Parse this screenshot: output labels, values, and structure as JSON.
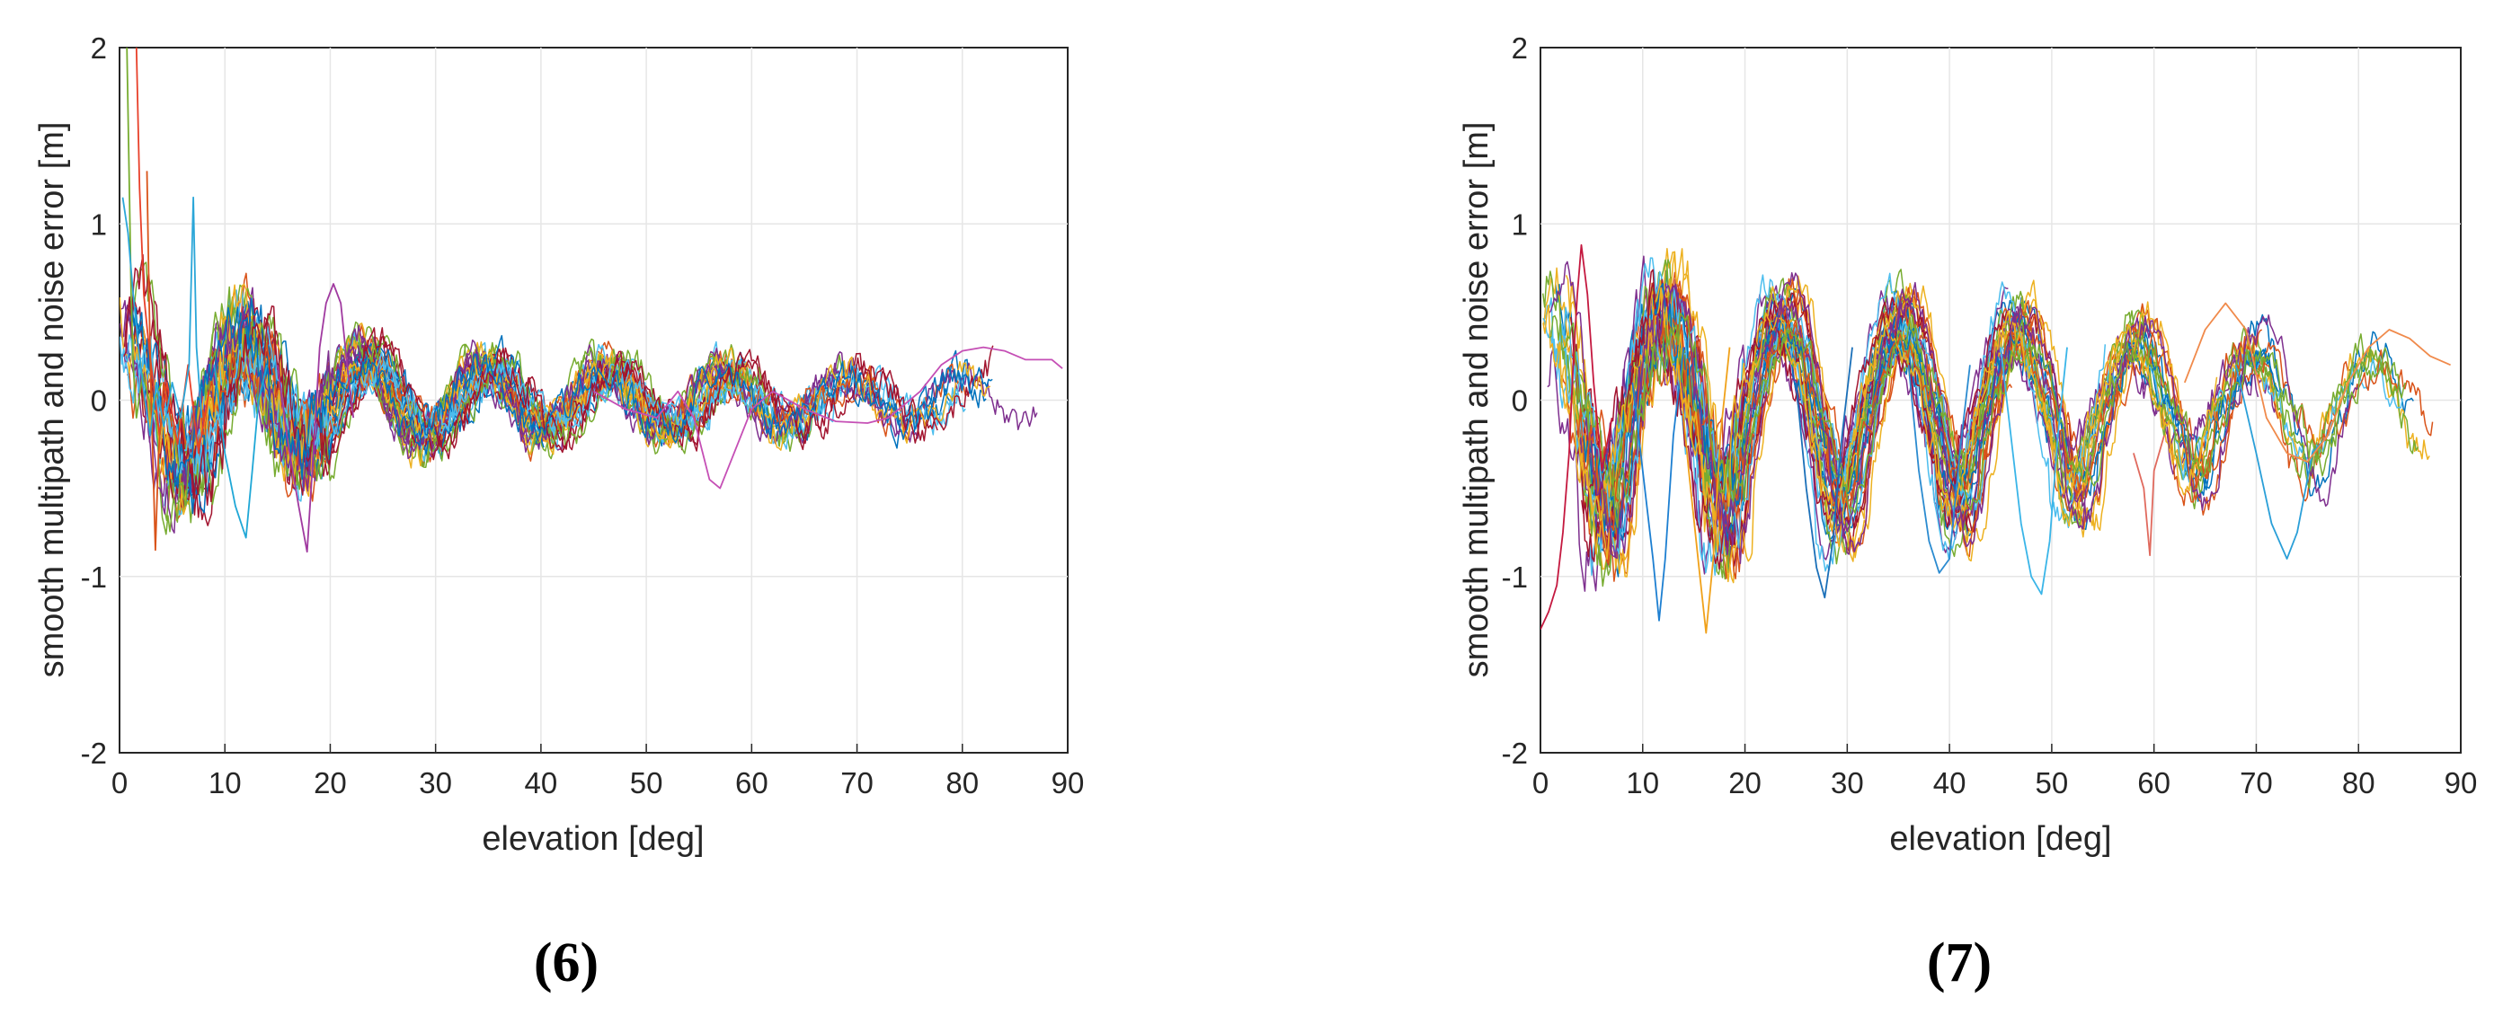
{
  "chart_data": [
    {
      "type": "line",
      "caption": "(6)",
      "title": "",
      "xlabel": "elevation [deg]",
      "ylabel": "smooth multipath and noise error [m]",
      "xlim": [
        0,
        90
      ],
      "ylim": [
        -2,
        2
      ],
      "xticks": [
        "0",
        "10",
        "20",
        "30",
        "40",
        "50",
        "60",
        "70",
        "80",
        "90"
      ],
      "yticks": [
        "-2",
        "-1",
        "0",
        "1",
        "2"
      ],
      "grid": true,
      "series_count": 36,
      "amplitude_envelope": [
        [
          0,
          0.55
        ],
        [
          15,
          0.35
        ],
        [
          30,
          0.22
        ],
        [
          50,
          0.18
        ],
        [
          70,
          0.15
        ],
        [
          90,
          0.15
        ]
      ],
      "oscillation_period_deg": 11.5,
      "colors": [
        "#0072BD",
        "#D95319",
        "#EDB120",
        "#7E2F8E",
        "#77AC30",
        "#4DBEEE",
        "#A2142F"
      ],
      "series": [
        {
          "name": "spike-red",
          "points": [
            [
              1.6,
              2.0
            ],
            [
              1.9,
              1.2
            ],
            [
              2.3,
              0.6
            ],
            [
              2.8,
              0.3
            ],
            [
              3.3,
              0.05
            ],
            [
              3.8,
              -0.2
            ],
            [
              4.5,
              0.1
            ],
            [
              5.5,
              -0.25
            ],
            [
              6.5,
              0.2
            ],
            [
              7.5,
              -0.3
            ],
            [
              8.5,
              0.05
            ]
          ]
        },
        {
          "name": "spike-green",
          "points": [
            [
              0.7,
              2.0
            ],
            [
              0.9,
              1.3
            ],
            [
              1.1,
              0.6
            ],
            [
              1.3,
              0.2
            ],
            [
              1.6,
              -0.1
            ],
            [
              2.2,
              0.15
            ],
            [
              3,
              -0.05
            ],
            [
              4,
              0.1
            ]
          ]
        },
        {
          "name": "spike-orange",
          "points": [
            [
              2.6,
              1.3
            ],
            [
              2.8,
              0.6
            ],
            [
              3.0,
              0.0
            ],
            [
              3.2,
              -0.4
            ],
            [
              3.4,
              -0.85
            ],
            [
              3.7,
              -0.3
            ],
            [
              4.2,
              0.1
            ],
            [
              5,
              -0.15
            ]
          ]
        },
        {
          "name": "spike-cyan",
          "points": [
            [
              0.3,
              1.15
            ],
            [
              0.8,
              0.95
            ],
            [
              1.3,
              0.6
            ],
            [
              1.8,
              0.3
            ],
            [
              2.3,
              0.05
            ],
            [
              2.9,
              -0.2
            ],
            [
              3.5,
              0.1
            ],
            [
              4.2,
              -0.15
            ],
            [
              5,
              0.1
            ],
            [
              5.8,
              -0.1
            ],
            [
              6.6,
              0.2
            ],
            [
              7.0,
              1.15
            ],
            [
              7.3,
              0.3
            ],
            [
              7.8,
              -0.1
            ]
          ]
        },
        {
          "name": "dip-cyan-12",
          "points": [
            [
              9,
              0.2
            ],
            [
              10,
              -0.3
            ],
            [
              11,
              -0.6
            ],
            [
              12,
              -0.78
            ],
            [
              12.6,
              -0.4
            ],
            [
              13.2,
              0.0
            ],
            [
              14,
              0.2
            ]
          ]
        },
        {
          "name": "dip-purple-18",
          "points": [
            [
              15,
              0.2
            ],
            [
              16,
              -0.25
            ],
            [
              17,
              -0.6
            ],
            [
              17.8,
              -0.86
            ],
            [
              18.4,
              -0.3
            ],
            [
              19,
              0.3
            ],
            [
              19.6,
              0.55
            ],
            [
              20.3,
              0.66
            ],
            [
              21,
              0.55
            ],
            [
              21.6,
              0.2
            ],
            [
              22.2,
              -0.1
            ]
          ]
        },
        {
          "name": "purple-long",
          "points": [
            [
              45,
              0.05
            ],
            [
              48,
              -0.05
            ],
            [
              51,
              -0.1
            ],
            [
              53,
              0.05
            ],
            [
              54.5,
              -0.1
            ],
            [
              56,
              -0.45
            ],
            [
              57,
              -0.5
            ],
            [
              58,
              -0.35
            ],
            [
              60,
              -0.05
            ],
            [
              62,
              0.05
            ],
            [
              65,
              -0.05
            ],
            [
              68,
              -0.12
            ],
            [
              71,
              -0.13
            ],
            [
              73,
              -0.1
            ],
            [
              76,
              0.05
            ],
            [
              78,
              0.2
            ],
            [
              80,
              0.28
            ],
            [
              82,
              0.3
            ],
            [
              84,
              0.28
            ],
            [
              86,
              0.23
            ],
            [
              88.5,
              0.23
            ],
            [
              89.5,
              0.18
            ]
          ]
        }
      ]
    },
    {
      "type": "line",
      "caption": "(7)",
      "title": "",
      "xlabel": "elevation [deg]",
      "ylabel": "smooth multipath and noise error [m]",
      "xlim": [
        0,
        90
      ],
      "ylim": [
        -2,
        2
      ],
      "xticks": [
        "0",
        "10",
        "20",
        "30",
        "40",
        "50",
        "60",
        "70",
        "80",
        "90"
      ],
      "yticks": [
        "-2",
        "-1",
        "0",
        "1",
        "2"
      ],
      "grid": true,
      "series_count": 40,
      "amplitude_envelope": [
        [
          0,
          0.5
        ],
        [
          20,
          0.5
        ],
        [
          40,
          0.45
        ],
        [
          60,
          0.35
        ],
        [
          75,
          0.3
        ],
        [
          90,
          0.2
        ]
      ],
      "oscillation_period_deg": 11.5,
      "colors": [
        "#0072BD",
        "#D95319",
        "#EDB120",
        "#7E2F8E",
        "#77AC30",
        "#4DBEEE",
        "#A2142F"
      ],
      "series": [
        {
          "name": "start-red",
          "points": [
            [
              0,
              -1.3
            ],
            [
              0.8,
              -1.2
            ],
            [
              1.6,
              -1.05
            ],
            [
              2.2,
              -0.75
            ],
            [
              2.8,
              -0.3
            ],
            [
              3.2,
              0.2
            ],
            [
              3.6,
              0.6
            ],
            [
              4.0,
              0.88
            ],
            [
              4.6,
              0.6
            ],
            [
              5.2,
              0.1
            ],
            [
              6,
              -0.4
            ],
            [
              7,
              -0.1
            ]
          ]
        },
        {
          "name": "dip-blue-12",
          "points": [
            [
              9,
              0.1
            ],
            [
              10,
              -0.4
            ],
            [
              11,
              -0.9
            ],
            [
              11.6,
              -1.25
            ],
            [
              12.2,
              -0.9
            ],
            [
              13,
              -0.2
            ],
            [
              14,
              0.3
            ]
          ]
        },
        {
          "name": "dip-orange-16",
          "points": [
            [
              13.5,
              0.2
            ],
            [
              14.5,
              -0.4
            ],
            [
              15.5,
              -0.95
            ],
            [
              16.2,
              -1.32
            ],
            [
              16.9,
              -0.9
            ],
            [
              17.6,
              -0.2
            ],
            [
              18.5,
              0.3
            ]
          ]
        },
        {
          "name": "dip-blue-28",
          "points": [
            [
              25,
              0.1
            ],
            [
              26,
              -0.5
            ],
            [
              27,
              -0.95
            ],
            [
              27.8,
              -1.12
            ],
            [
              28.6,
              -0.8
            ],
            [
              29.5,
              -0.2
            ],
            [
              30.5,
              0.3
            ]
          ]
        },
        {
          "name": "dip-blue-40",
          "points": [
            [
              36,
              0.2
            ],
            [
              37,
              -0.4
            ],
            [
              38,
              -0.8
            ],
            [
              39,
              -0.98
            ],
            [
              40,
              -0.9
            ],
            [
              41,
              -0.3
            ],
            [
              42,
              0.2
            ]
          ]
        },
        {
          "name": "dip-cyan-49",
          "points": [
            [
              45,
              0.3
            ],
            [
              46,
              -0.2
            ],
            [
              47,
              -0.7
            ],
            [
              48,
              -1.0
            ],
            [
              49,
              -1.1
            ],
            [
              49.8,
              -0.8
            ],
            [
              50.6,
              -0.2
            ],
            [
              51.5,
              0.3
            ]
          ]
        },
        {
          "name": "red-spike-60",
          "points": [
            [
              58,
              -0.3
            ],
            [
              59,
              -0.5
            ],
            [
              59.6,
              -0.88
            ],
            [
              60,
              -0.4
            ],
            [
              61,
              -0.2
            ]
          ]
        },
        {
          "name": "dip-blue-73",
          "points": [
            [
              68,
              0.2
            ],
            [
              70,
              -0.3
            ],
            [
              71.5,
              -0.7
            ],
            [
              73,
              -0.9
            ],
            [
              74,
              -0.75
            ],
            [
              75.5,
              -0.3
            ],
            [
              77,
              -0.2
            ]
          ]
        },
        {
          "name": "orange-high",
          "points": [
            [
              63,
              0.1
            ],
            [
              65,
              0.4
            ],
            [
              67,
              0.55
            ],
            [
              69,
              0.4
            ],
            [
              71,
              -0.1
            ],
            [
              73,
              -0.3
            ],
            [
              75,
              -0.35
            ],
            [
              77,
              -0.2
            ],
            [
              79,
              0.1
            ],
            [
              81,
              0.3
            ],
            [
              83,
              0.4
            ],
            [
              85,
              0.35
            ],
            [
              87,
              0.25
            ],
            [
              89,
              0.2
            ]
          ]
        }
      ]
    }
  ]
}
